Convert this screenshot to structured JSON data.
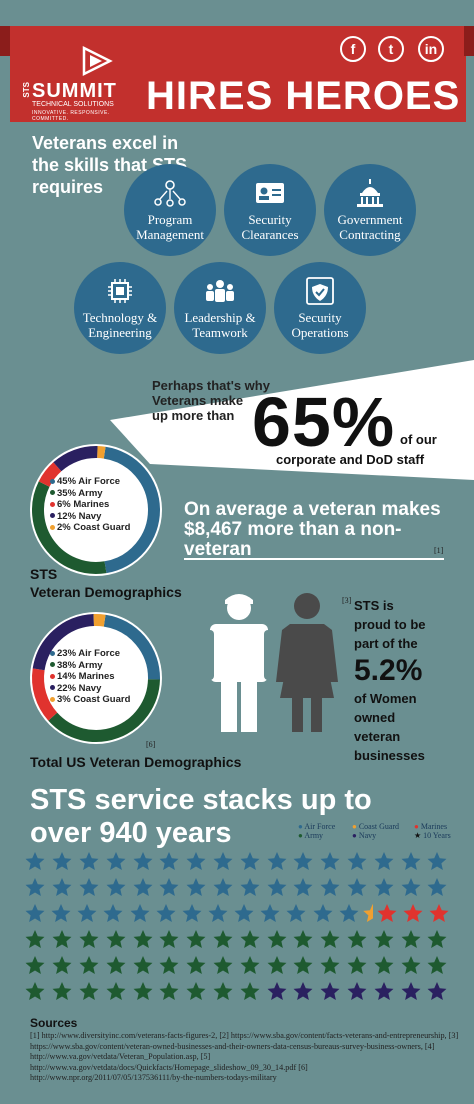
{
  "header": {
    "logo_name": "SUMMIT",
    "logo_sts": "STS",
    "logo_sub": "TECHNICAL SOLUTIONS",
    "logo_tag": "INNOVATIVE. RESPONSIVE. COMMITTED.",
    "title": "HIRES HEROES",
    "social": [
      {
        "label": "f",
        "icon": "facebook-icon"
      },
      {
        "label": "t",
        "icon": "twitter-icon"
      },
      {
        "label": "in",
        "icon": "linkedin-icon"
      }
    ]
  },
  "skills": {
    "intro": "Veterans excel in the skills that STS requires",
    "items": [
      {
        "line1": "Program",
        "line2": "Management",
        "icon": "network-icon"
      },
      {
        "line1": "Security",
        "line2": "Clearances",
        "icon": "id-card-icon"
      },
      {
        "line1": "Government",
        "line2": "Contracting",
        "icon": "capitol-icon"
      },
      {
        "line1": "Technology &",
        "line2": "Engineering",
        "icon": "chip-icon"
      },
      {
        "line1": "Leadership &",
        "line2": "Teamwork",
        "icon": "team-icon"
      },
      {
        "line1": "Security",
        "line2": "Operations",
        "icon": "shield-icon"
      }
    ]
  },
  "banner": {
    "line1": "Perhaps that's why",
    "line2": "Veterans make",
    "line3": "up more than",
    "big": "65%",
    "of_our": "of our",
    "corporate": "corporate and DoD staff"
  },
  "average": {
    "text": "On average a veteran makes $8,467 more than a non-veteran",
    "cite": "[1]"
  },
  "sts_demo": {
    "title_1": "STS",
    "title_2": "Veteran Demographics",
    "legend": [
      {
        "label": "45% Air Force",
        "color": "#2e6a8e",
        "value": 45
      },
      {
        "label": "35% Army",
        "color": "#1e5a30",
        "value": 35
      },
      {
        "label": "6% Marines",
        "color": "#e0332e",
        "value": 6
      },
      {
        "label": "12% Navy",
        "color": "#2a2060",
        "value": 12
      },
      {
        "label": "2% Coast Guard",
        "color": "#f0a030",
        "value": 2
      }
    ]
  },
  "us_demo": {
    "title": "Total US Veteran Demographics",
    "cite": "[6]",
    "legend": [
      {
        "label": "23% Air Force",
        "color": "#2e6a8e",
        "value": 23
      },
      {
        "label": "38% Army",
        "color": "#1e5a30",
        "value": 38
      },
      {
        "label": "14% Marines",
        "color": "#e0332e",
        "value": 14
      },
      {
        "label": "22% Navy",
        "color": "#2a2060",
        "value": 22
      },
      {
        "label": "3% Coast Guard",
        "color": "#f0a030",
        "value": 3
      }
    ]
  },
  "women": {
    "cite": "[3]",
    "line1": "STS is",
    "line2": "proud to be",
    "line3": "part of the",
    "big": "5.2%",
    "line4": "of Women",
    "line5": "owned",
    "line6": "veteran",
    "line7": "businesses"
  },
  "stacks": {
    "title_1": "STS service stacks up to",
    "title_2": "over 940 years",
    "key": [
      {
        "label": "Air Force",
        "color": "#2e6a8e"
      },
      {
        "label": "Coast Guard",
        "color": "#f0a030"
      },
      {
        "label": "Marines",
        "color": "#e0332e"
      },
      {
        "label": "Army",
        "color": "#1e5a30"
      },
      {
        "label": "Navy",
        "color": "#2a2060"
      },
      {
        "label": "10 Years",
        "color": "#111111"
      }
    ],
    "rows": [
      [
        "AF",
        "AF",
        "AF",
        "AF",
        "AF",
        "AF",
        "AF",
        "AF",
        "AF",
        "AF",
        "AF",
        "AF",
        "AF",
        "AF",
        "AF",
        "AF"
      ],
      [
        "AF",
        "AF",
        "AF",
        "AF",
        "AF",
        "AF",
        "AF",
        "AF",
        "AF",
        "AF",
        "AF",
        "AF",
        "AF",
        "AF",
        "AF",
        "AF"
      ],
      [
        "AF",
        "AF",
        "AF",
        "AF",
        "AF",
        "AF",
        "AF",
        "AF",
        "AF",
        "AF",
        "AF",
        "AF",
        "AF",
        "CG",
        "MA",
        "MA",
        "MA"
      ],
      [
        "AR",
        "AR",
        "AR",
        "AR",
        "AR",
        "AR",
        "AR",
        "AR",
        "AR",
        "AR",
        "AR",
        "AR",
        "AR",
        "AR",
        "AR",
        "AR"
      ],
      [
        "AR",
        "AR",
        "AR",
        "AR",
        "AR",
        "AR",
        "AR",
        "AR",
        "AR",
        "AR",
        "AR",
        "AR",
        "AR",
        "AR",
        "AR",
        "AR"
      ],
      [
        "AR",
        "AR",
        "AR",
        "AR",
        "AR",
        "AR",
        "AR",
        "AR",
        "AR",
        "NV",
        "NV",
        "NV",
        "NV",
        "NV",
        "NV",
        "NV"
      ]
    ]
  },
  "sources": {
    "title": "Sources",
    "text": "[1] http://www.diversityinc.com/veterans-facts-figures-2, [2] https://www.sba.gov/content/facts-veterans-and-entrepreneurship, [3] https://www.sba.gov/content/veteran-owned-businesses-and-their-owners-data-census-bureaus-survey-business-owners, [4] http://www.va.gov/vetdata/Veteran_Population.asp, [5] http://www.va.gov/vetdata/docs/Quickfacts/Homepage_slideshow_09_30_14.pdf [6] http://www.npr.org/2011/07/05/137536111/by-the-numbers-todays-military"
  },
  "colors": {
    "background": "#6a8f91",
    "header_red": "#c2302d",
    "skill_blue": "#2e6a8e"
  }
}
